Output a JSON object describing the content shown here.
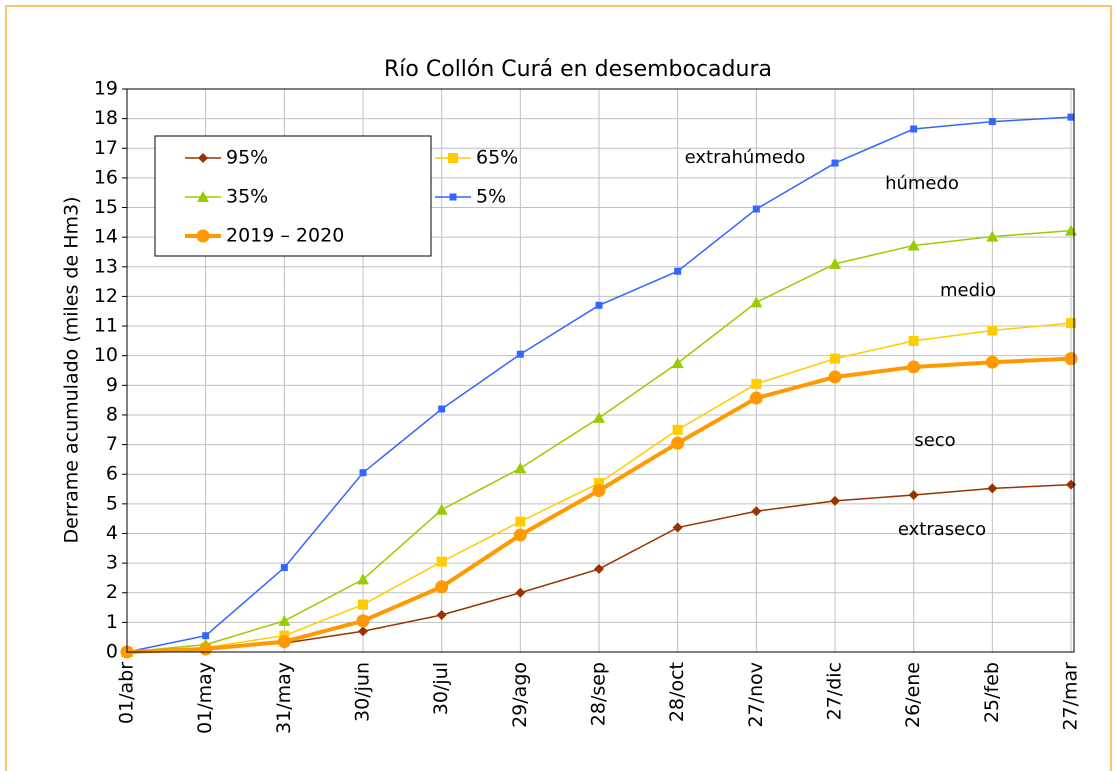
{
  "chart_data": {
    "type": "line",
    "title": "Río Collón Curá en desembocadura",
    "y_label": "Derrame acumulado (miles de Hm3)",
    "categories": [
      "01/abr",
      "01/may",
      "31/may",
      "30/jun",
      "30/jul",
      "29/ago",
      "28/sep",
      "28/oct",
      "27/nov",
      "27/dic",
      "26/ene",
      "25/feb",
      "27/mar"
    ],
    "series": [
      {
        "name": "95%",
        "color": "#993300",
        "marker": "diamond",
        "values": [
          0,
          0.1,
          0.3,
          0.7,
          1.25,
          2.0,
          2.8,
          4.2,
          4.75,
          5.1,
          5.3,
          5.52,
          5.65
        ]
      },
      {
        "name": "65%",
        "color": "#ffcc00",
        "marker": "square",
        "values": [
          0,
          0.15,
          0.55,
          1.6,
          3.05,
          4.4,
          5.7,
          7.5,
          9.05,
          9.9,
          10.5,
          10.85,
          11.1
        ]
      },
      {
        "name": "35%",
        "color": "#99cc00",
        "marker": "triangle",
        "values": [
          0,
          0.25,
          1.05,
          2.45,
          4.8,
          6.2,
          7.9,
          9.75,
          11.8,
          13.1,
          13.72,
          14.02,
          14.22
        ]
      },
      {
        "name": "5%",
        "color": "#3366ff",
        "marker": "small-square",
        "values": [
          0,
          0.55,
          2.85,
          6.05,
          8.2,
          10.05,
          11.7,
          12.85,
          14.95,
          16.5,
          17.65,
          17.9,
          18.05
        ]
      },
      {
        "name": "2019 – 2020",
        "color": "#ff9900",
        "marker": "circle",
        "thick": true,
        "values": [
          0,
          0.1,
          0.35,
          1.05,
          2.2,
          3.95,
          5.45,
          7.05,
          8.57,
          9.28,
          9.62,
          9.78,
          9.9
        ]
      }
    ],
    "annotations": [
      "extrahúmedo",
      "húmedo",
      "medio",
      "seco",
      "extraseco"
    ],
    "ylim": [
      0,
      19
    ],
    "yticks": [
      0,
      1,
      2,
      3,
      4,
      5,
      6,
      7,
      8,
      9,
      10,
      11,
      12,
      13,
      14,
      15,
      16,
      17,
      18,
      19
    ],
    "grid": true
  }
}
